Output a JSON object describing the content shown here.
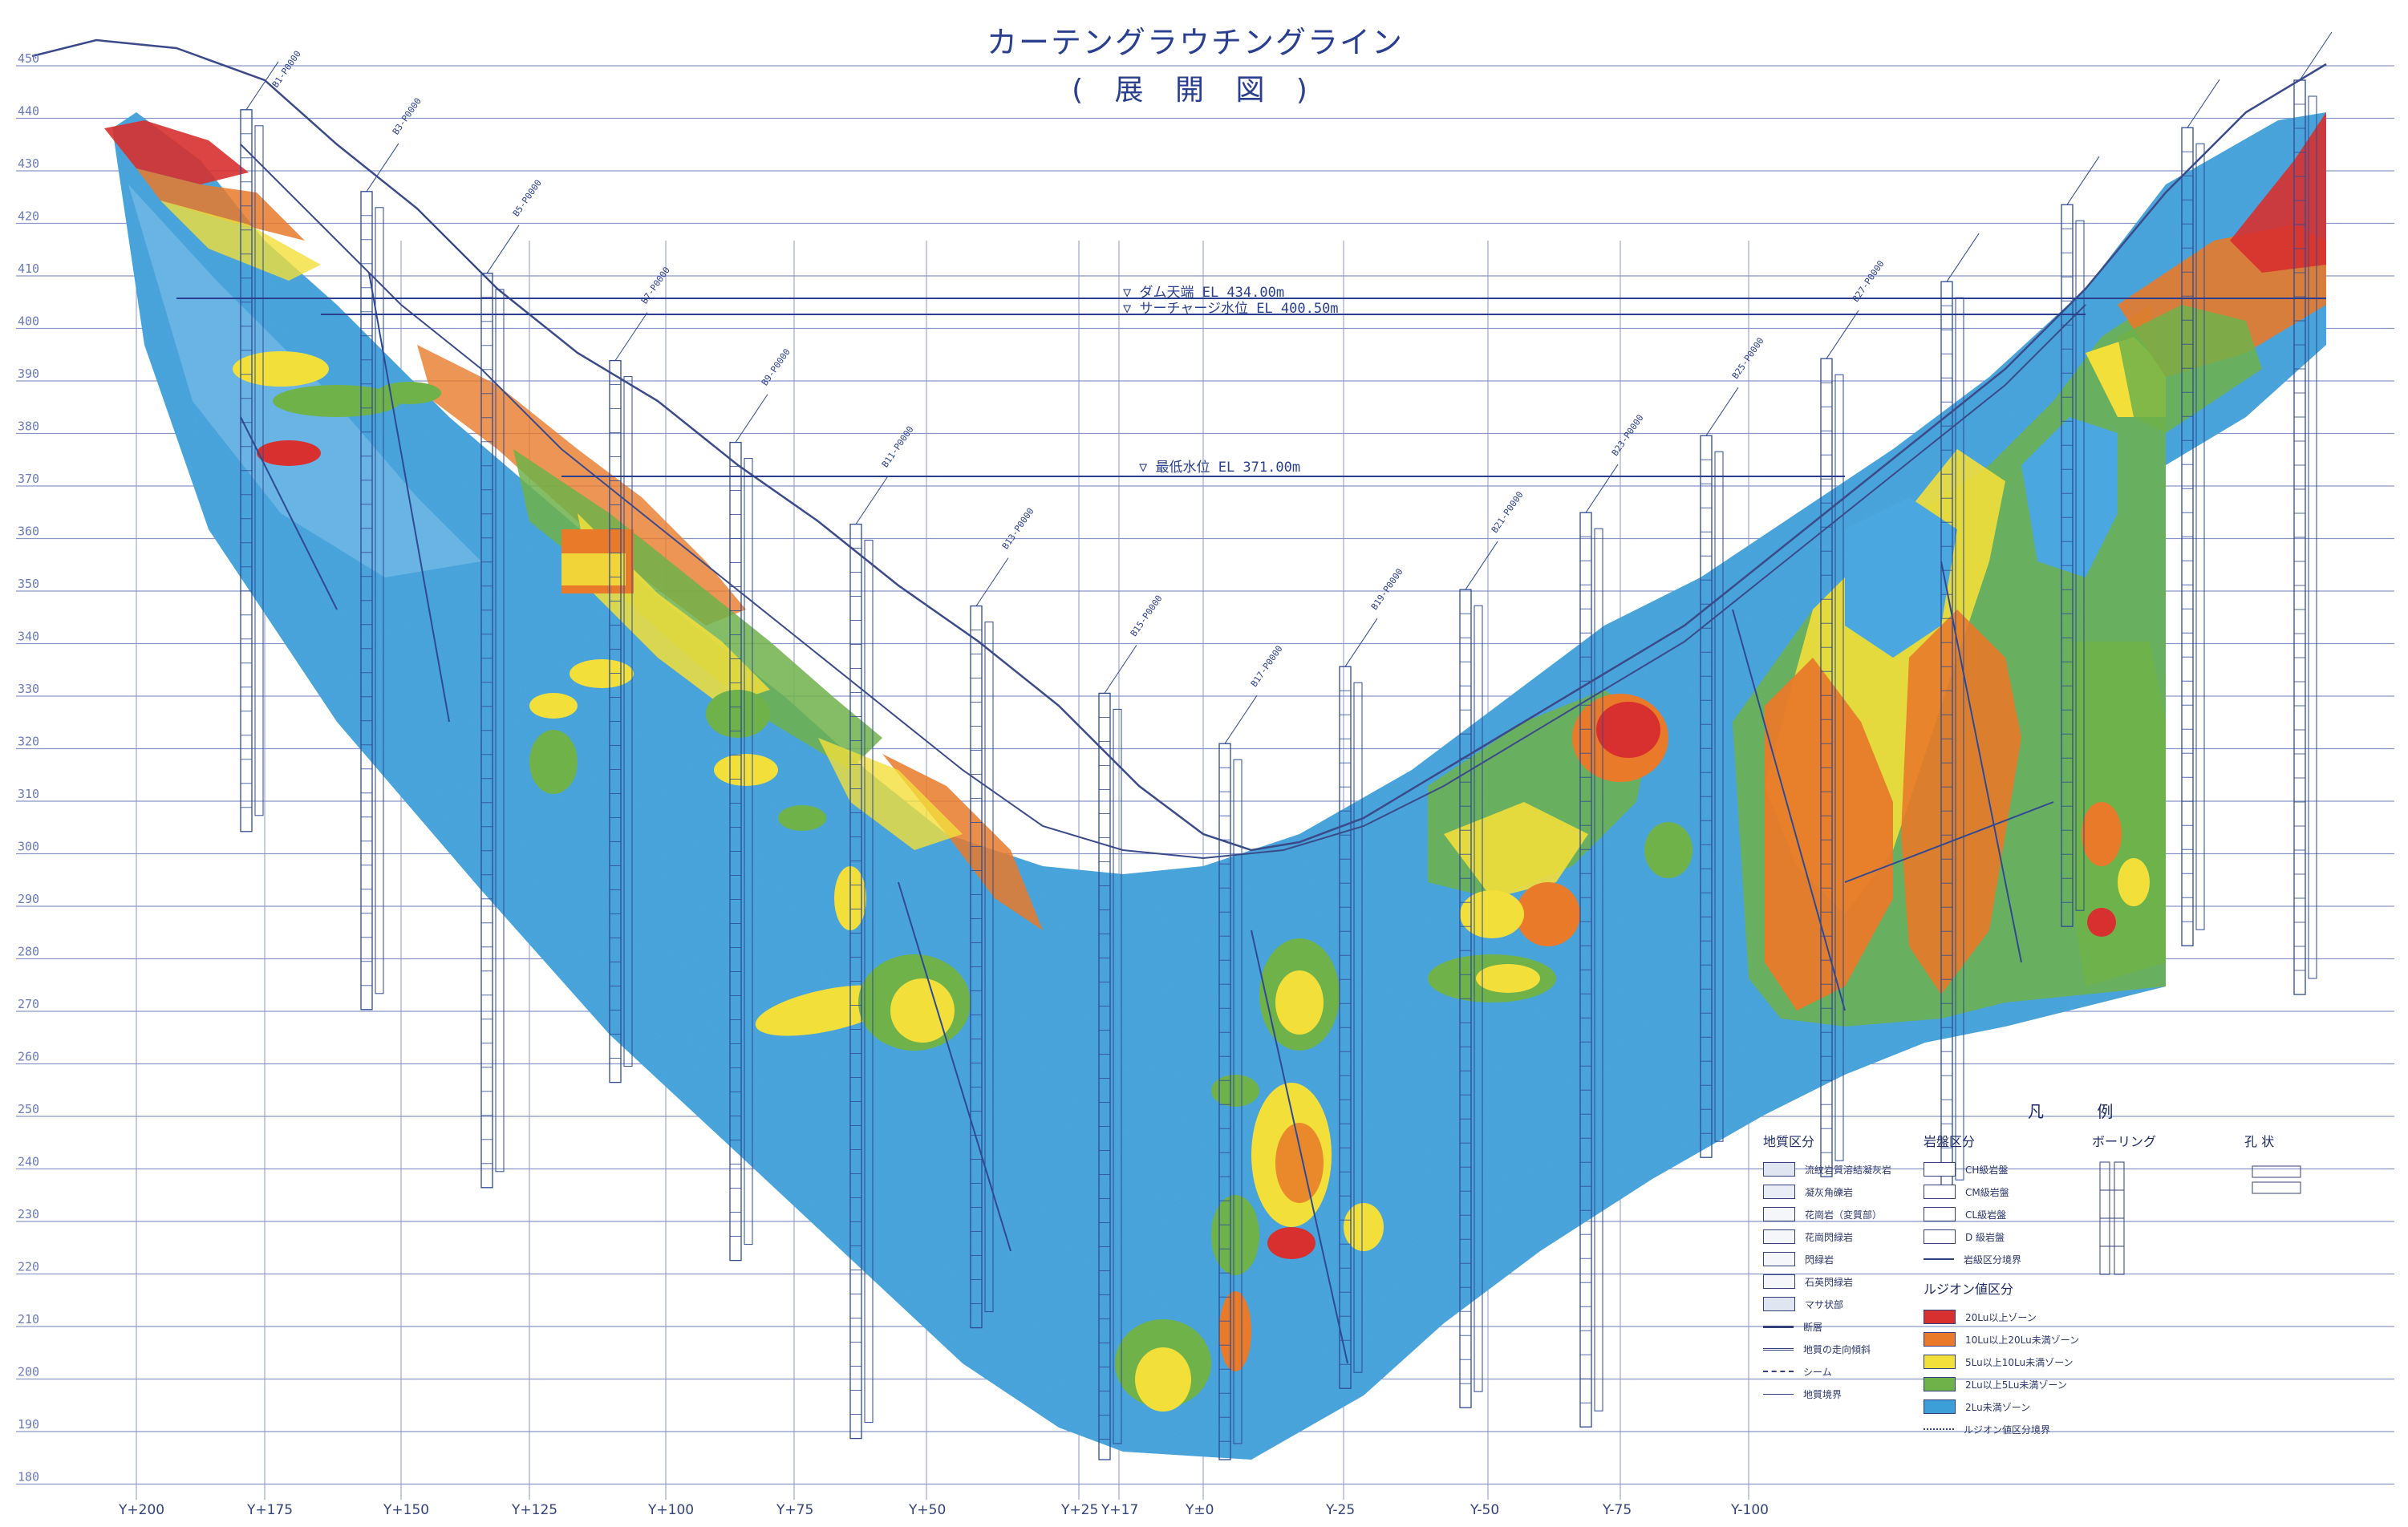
{
  "title": "カーテングラウチングライン",
  "subtitle": "( 展 開 図 )",
  "elevations": [
    "450",
    "440",
    "430",
    "420",
    "410",
    "400",
    "390",
    "380",
    "370",
    "360",
    "350",
    "340",
    "330",
    "320",
    "310",
    "300",
    "290",
    "280",
    "270",
    "260",
    "250",
    "240",
    "230",
    "220",
    "210",
    "200",
    "190",
    "180"
  ],
  "stations": [
    "Y+200",
    "Y+175",
    "Y+150",
    "Y+125",
    "Y+100",
    "Y+75",
    "Y+50",
    "Y+25",
    "Y+17",
    "Y±0",
    "Y-25",
    "Y-50",
    "Y-75",
    "Y-100"
  ],
  "water_levels": {
    "dam_crest": "▽ ダム天端 EL 434.00m",
    "surcharge": "▽ サーチャージ水位 EL 400.50m",
    "min_level": "▽ 最低水位 EL 371.00m"
  },
  "boreholes": [
    "B1-P0000",
    "B3-P0000",
    "B5-P0000",
    "B7-P0000",
    "B9-P0000",
    "B11-P0000",
    "B13-P0000",
    "B15-P0000",
    "B17-P0000",
    "B19-P0000",
    "B21-P0000",
    "B23-P0000",
    "B25-P0000",
    "B27-P0000"
  ],
  "legend": {
    "title": "凡 例",
    "geology": {
      "heading": "地質区分",
      "items": [
        "流紋岩質溶結凝灰岩",
        "凝灰角礫岩",
        "花崗岩（変質部）",
        "花崗閃緑岩",
        "閃緑岩",
        "石英閃緑岩",
        "マサ状部"
      ]
    },
    "rock_class": {
      "heading": "岩盤区分",
      "items": [
        "CH級岩盤",
        "CM級岩盤",
        "CL級岩盤",
        "D 級岩盤"
      ]
    },
    "lugeon": {
      "heading": "ルジオン値区分",
      "items": [
        "20Lu以上ゾーン",
        "10Lu以上20Lu未満ゾーン",
        "5Lu以上10Lu未満ゾーン",
        "2Lu以上5Lu未満ゾーン",
        "2Lu未満ゾーン"
      ],
      "colors": [
        "#d8302f",
        "#e87a2a",
        "#f2df3a",
        "#6fb24a",
        "#3c9fd8"
      ]
    },
    "boring_heading": "ボーリング",
    "lines": [
      "断層",
      "地質の走向傾斜",
      "シーム",
      "地質境界",
      "岩級区分境界",
      "ルジオン値区分境界"
    ],
    "misc_heading": "孔 状"
  }
}
